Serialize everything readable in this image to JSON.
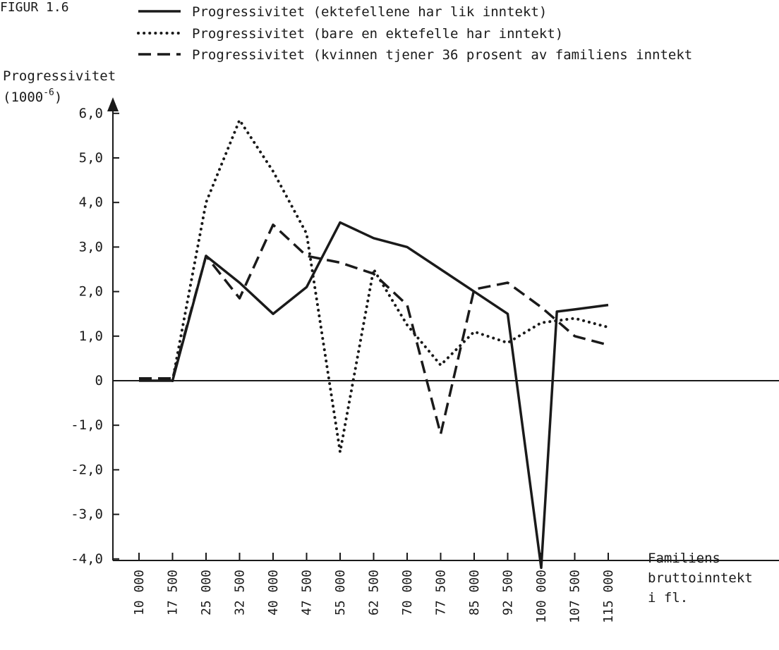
{
  "figure_label": "FIGUR 1.6",
  "chart_data": {
    "type": "line",
    "ylabel": "Progressivitet",
    "ylabel_unit": "(1000",
    "ylabel_unit_exp": "-6",
    "ylabel_unit_close": ")",
    "xlabel": [
      "Familiens",
      "bruttoinntekt",
      "i fl."
    ],
    "categories": [
      "10 000",
      "17 500",
      "25 000",
      "32 500",
      "40 000",
      "47 500",
      "55 000",
      "62 500",
      "70 000",
      "77 500",
      "85 000",
      "92 500",
      "100 000",
      "107 500",
      "115 000"
    ],
    "yticks": [
      "6,0",
      "5,0",
      "4,0",
      "3,0",
      "2,0",
      "1,0",
      "0",
      "-1,0",
      "-2,0",
      "-3,0",
      "-4,0"
    ],
    "ylim": [
      -4.0,
      6.0
    ],
    "grid": false,
    "legend_position": "top",
    "series": [
      {
        "name": "Progressivitet (ektefellene har lik inntekt)",
        "style": "solid",
        "points": [
          {
            "x": 10000,
            "y": 0.0
          },
          {
            "x": 17500,
            "y": 0.0
          },
          {
            "x": 25000,
            "y": 2.8
          },
          {
            "x": 32500,
            "y": 2.2
          },
          {
            "x": 40000,
            "y": 1.5
          },
          {
            "x": 47500,
            "y": 2.1
          },
          {
            "x": 55000,
            "y": 3.55
          },
          {
            "x": 62500,
            "y": 3.2
          },
          {
            "x": 70000,
            "y": 3.0
          },
          {
            "x": 77500,
            "y": 2.5
          },
          {
            "x": 85000,
            "y": 2.0
          },
          {
            "x": 92500,
            "y": 1.5
          },
          {
            "x": 100000,
            "y": -4.2
          },
          {
            "x": 103500,
            "y": 1.55
          },
          {
            "x": 107500,
            "y": 1.6
          },
          {
            "x": 115000,
            "y": 1.7
          }
        ]
      },
      {
        "name": "Progressivitet (bare en ektefelle har inntekt)",
        "style": "dotted",
        "points": [
          {
            "x": 17500,
            "y": 0.0
          },
          {
            "x": 25000,
            "y": 4.0
          },
          {
            "x": 32500,
            "y": 5.85
          },
          {
            "x": 40000,
            "y": 4.7
          },
          {
            "x": 47500,
            "y": 3.3
          },
          {
            "x": 55000,
            "y": -1.6
          },
          {
            "x": 62500,
            "y": 2.5
          },
          {
            "x": 70000,
            "y": 1.25
          },
          {
            "x": 77500,
            "y": 0.35
          },
          {
            "x": 85000,
            "y": 1.1
          },
          {
            "x": 92500,
            "y": 0.85
          },
          {
            "x": 100000,
            "y": 1.3
          },
          {
            "x": 107500,
            "y": 1.4
          },
          {
            "x": 115000,
            "y": 1.2
          }
        ]
      },
      {
        "name": "Progressivitet (kvinnen tjener 36 prosent av familiens inntekt",
        "style": "dashed",
        "points": [
          {
            "x": 10000,
            "y": 0.05
          },
          {
            "x": 17500,
            "y": 0.05
          },
          {
            "x": 25000,
            "y": 2.8
          },
          {
            "x": 32500,
            "y": 1.85
          },
          {
            "x": 40000,
            "y": 3.5
          },
          {
            "x": 47500,
            "y": 2.8
          },
          {
            "x": 55000,
            "y": 2.65
          },
          {
            "x": 62500,
            "y": 2.4
          },
          {
            "x": 70000,
            "y": 1.7
          },
          {
            "x": 77500,
            "y": -1.2
          },
          {
            "x": 85000,
            "y": 2.05
          },
          {
            "x": 92500,
            "y": 2.2
          },
          {
            "x": 100000,
            "y": 1.65
          },
          {
            "x": 107500,
            "y": 1.0
          },
          {
            "x": 115000,
            "y": 0.8
          }
        ]
      }
    ]
  }
}
